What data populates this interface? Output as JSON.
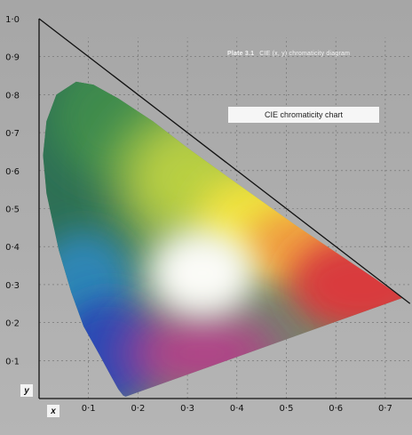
{
  "plate": {
    "number": "Plate 3.1",
    "caption": "CIE (x, y) chromaticity diagram"
  },
  "label_box": "CIE chromaticity chart",
  "colors": {
    "background": "#a9a9a9",
    "red": "#d93a3e",
    "green": "#2f6f55",
    "blue": "#2448b8",
    "yellow": "#f0e33c",
    "white_point": "#fbfbf7"
  },
  "chart_data": {
    "type": "area",
    "xlabel": "x",
    "ylabel": "y",
    "xlim": [
      0,
      0.75
    ],
    "ylim": [
      0,
      1.0
    ],
    "x_ticks": [
      "0·1",
      "0·2",
      "0·3",
      "0·4",
      "0·5",
      "0·6",
      "0·7"
    ],
    "y_ticks": [
      "0·1",
      "0·2",
      "0·3",
      "0·4",
      "0·5",
      "0·6",
      "0·7",
      "0·8",
      "0·9",
      "1·0"
    ],
    "grid": true,
    "boundary_line": [
      [
        0,
        1.0
      ],
      [
        0.75,
        0.25
      ]
    ],
    "spectral_locus": [
      [
        0.175,
        0.005
      ],
      [
        0.17,
        0.008
      ],
      [
        0.16,
        0.025
      ],
      [
        0.145,
        0.06
      ],
      [
        0.12,
        0.12
      ],
      [
        0.09,
        0.19
      ],
      [
        0.065,
        0.28
      ],
      [
        0.04,
        0.39
      ],
      [
        0.015,
        0.54
      ],
      [
        0.008,
        0.64
      ],
      [
        0.015,
        0.73
      ],
      [
        0.035,
        0.8
      ],
      [
        0.075,
        0.834
      ],
      [
        0.11,
        0.826
      ],
      [
        0.16,
        0.79
      ],
      [
        0.23,
        0.73
      ],
      [
        0.3,
        0.66
      ],
      [
        0.38,
        0.585
      ],
      [
        0.45,
        0.52
      ],
      [
        0.52,
        0.455
      ],
      [
        0.6,
        0.385
      ],
      [
        0.68,
        0.315
      ],
      [
        0.735,
        0.265
      ]
    ],
    "purple_line": [
      [
        0.735,
        0.265
      ],
      [
        0.175,
        0.005
      ]
    ],
    "white_point": [
      0.33,
      0.33
    ]
  }
}
